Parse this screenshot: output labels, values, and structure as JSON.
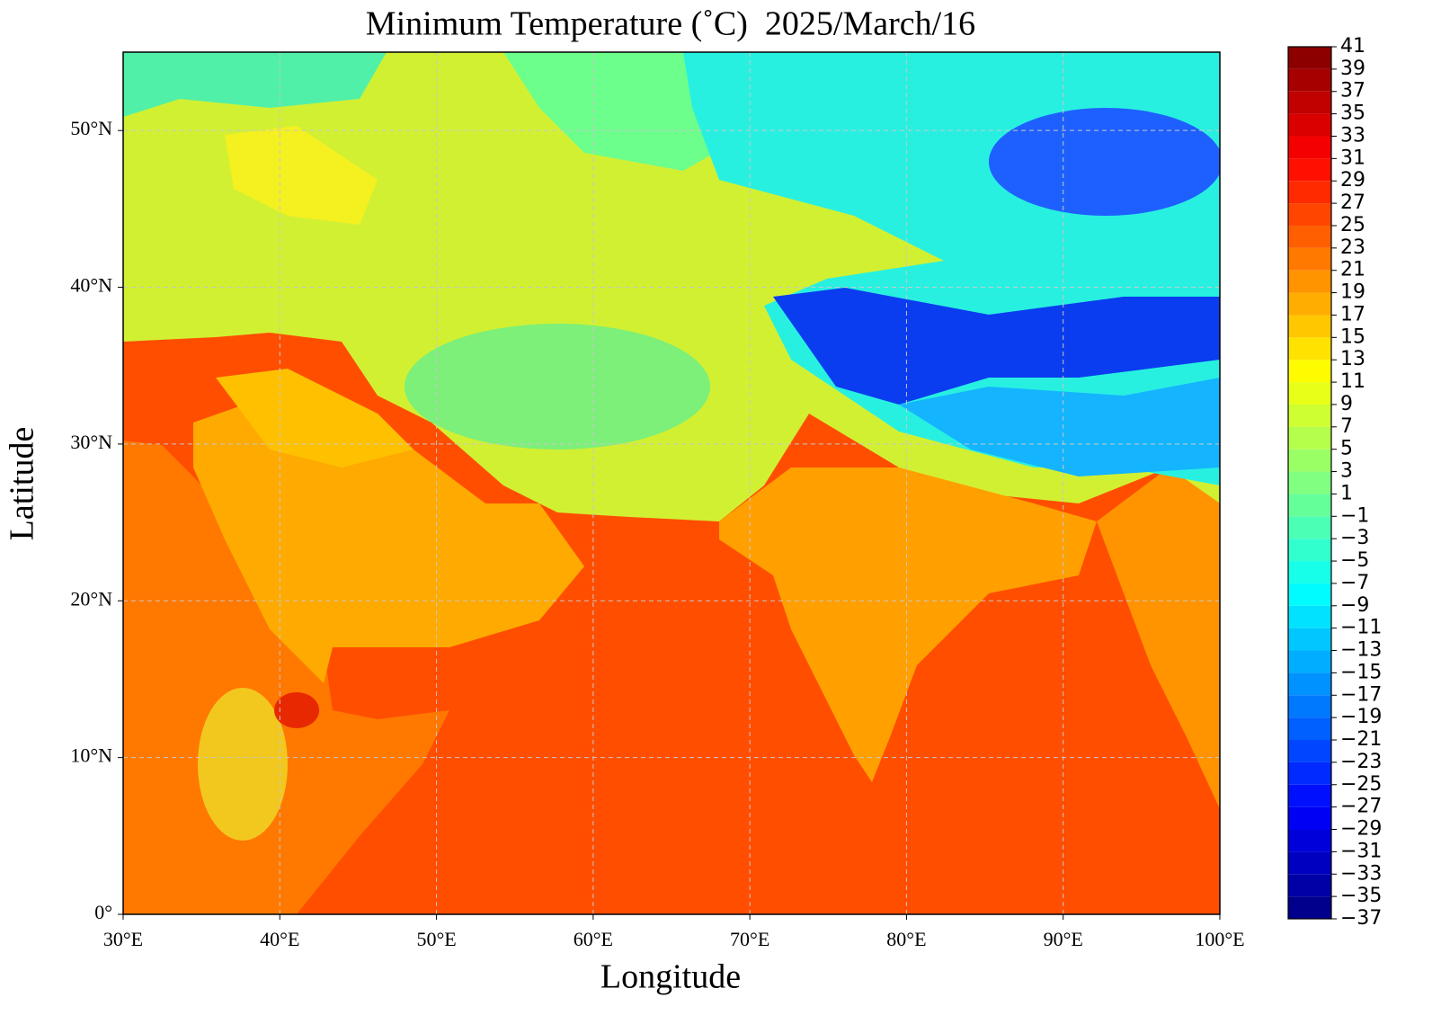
{
  "chart_data": {
    "type": "map",
    "title": "Minimum Temperature (˚C)  2025/March/16",
    "xlabel": "Longitude",
    "ylabel": "Latitude",
    "xlim": [
      30,
      100
    ],
    "ylim": [
      0,
      55
    ],
    "xticks": [
      {
        "value": 30,
        "label": "30°E"
      },
      {
        "value": 40,
        "label": "40°E"
      },
      {
        "value": 50,
        "label": "50°E"
      },
      {
        "value": 60,
        "label": "60°E"
      },
      {
        "value": 70,
        "label": "70°E"
      },
      {
        "value": 80,
        "label": "80°E"
      },
      {
        "value": 90,
        "label": "90°E"
      },
      {
        "value": 100,
        "label": "100°E"
      }
    ],
    "yticks": [
      {
        "value": 0,
        "label": "0°"
      },
      {
        "value": 10,
        "label": "10°N"
      },
      {
        "value": 20,
        "label": "20°N"
      },
      {
        "value": 30,
        "label": "30°N"
      },
      {
        "value": 40,
        "label": "40°N"
      },
      {
        "value": 50,
        "label": "50°N"
      }
    ],
    "grid": true,
    "colorbar": {
      "cmap": "jet",
      "lim": [
        -37,
        41
      ],
      "ticks": [
        {
          "value": -37,
          "label": "−37"
        },
        {
          "value": -35,
          "label": "−35"
        },
        {
          "value": -33,
          "label": "−33"
        },
        {
          "value": -31,
          "label": "−31"
        },
        {
          "value": -29,
          "label": "−29"
        },
        {
          "value": -27,
          "label": "−27"
        },
        {
          "value": -25,
          "label": "−25"
        },
        {
          "value": -23,
          "label": "−23"
        },
        {
          "value": -21,
          "label": "−21"
        },
        {
          "value": -19,
          "label": "−19"
        },
        {
          "value": -17,
          "label": "−17"
        },
        {
          "value": -15,
          "label": "−15"
        },
        {
          "value": -13,
          "label": "−13"
        },
        {
          "value": -11,
          "label": "−11"
        },
        {
          "value": -9,
          "label": "−9"
        },
        {
          "value": -7,
          "label": "−7"
        },
        {
          "value": -5,
          "label": "−5"
        },
        {
          "value": -3,
          "label": "−3"
        },
        {
          "value": -1,
          "label": "−1"
        },
        1,
        3,
        5,
        7,
        9,
        11,
        13,
        15,
        17,
        19,
        21,
        23,
        25,
        27,
        29,
        31,
        33,
        35,
        37,
        39,
        41
      ]
    }
  }
}
